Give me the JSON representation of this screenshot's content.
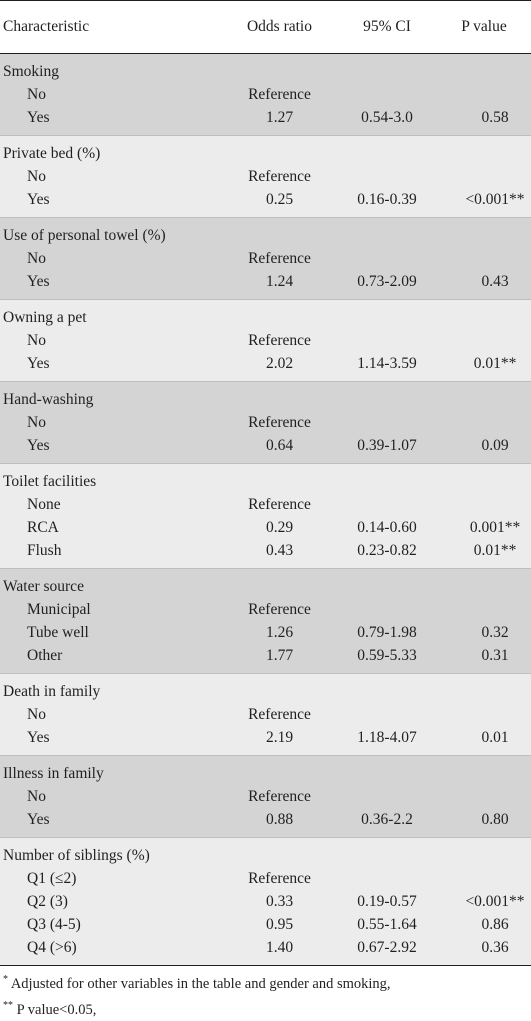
{
  "headers": {
    "characteristic": "Characteristic",
    "odds_ratio": "Odds ratio",
    "ci": "95% CI",
    "p_value": "P value"
  },
  "groups": [
    {
      "title": "Smoking",
      "rows": [
        {
          "level": "No",
          "or": "Reference",
          "ci": "",
          "p": ""
        },
        {
          "level": "Yes",
          "or": "1.27",
          "ci": "0.54-3.0",
          "p": "0.58"
        }
      ]
    },
    {
      "title": "Private bed (%)",
      "rows": [
        {
          "level": "No",
          "or": "Reference",
          "ci": "",
          "p": ""
        },
        {
          "level": "Yes",
          "or": "0.25",
          "ci": "0.16-0.39",
          "p": "<0.001**"
        }
      ]
    },
    {
      "title": "Use of personal towel (%)",
      "rows": [
        {
          "level": "No",
          "or": "Reference",
          "ci": "",
          "p": ""
        },
        {
          "level": "Yes",
          "or": "1.24",
          "ci": "0.73-2.09",
          "p": "0.43"
        }
      ]
    },
    {
      "title": "Owning a pet",
      "rows": [
        {
          "level": "No",
          "or": "Reference",
          "ci": "",
          "p": ""
        },
        {
          "level": "Yes",
          "or": "2.02",
          "ci": "1.14-3.59",
          "p": "0.01**"
        }
      ]
    },
    {
      "title": "Hand-washing",
      "rows": [
        {
          "level": "No",
          "or": "Reference",
          "ci": "",
          "p": ""
        },
        {
          "level": "Yes",
          "or": "0.64",
          "ci": "0.39-1.07",
          "p": "0.09"
        }
      ]
    },
    {
      "title": "Toilet facilities",
      "rows": [
        {
          "level": "None",
          "or": "Reference",
          "ci": "",
          "p": ""
        },
        {
          "level": "RCA",
          "or": "0.29",
          "ci": "0.14-0.60",
          "p": "0.001**"
        },
        {
          "level": "Flush",
          "or": "0.43",
          "ci": "0.23-0.82",
          "p": "0.01**"
        }
      ]
    },
    {
      "title": "Water source",
      "rows": [
        {
          "level": "Municipal",
          "or": "Reference",
          "ci": "",
          "p": ""
        },
        {
          "level": "Tube well",
          "or": "1.26",
          "ci": "0.79-1.98",
          "p": "0.32"
        },
        {
          "level": "Other",
          "or": "1.77",
          "ci": "0.59-5.33",
          "p": "0.31"
        }
      ]
    },
    {
      "title": "Death in family",
      "rows": [
        {
          "level": "No",
          "or": "Reference",
          "ci": "",
          "p": ""
        },
        {
          "level": "Yes",
          "or": "2.19",
          "ci": "1.18-4.07",
          "p": "0.01"
        }
      ]
    },
    {
      "title": "Illness in family",
      "rows": [
        {
          "level": "No",
          "or": "Reference",
          "ci": "",
          "p": ""
        },
        {
          "level": "Yes",
          "or": "0.88",
          "ci": "0.36-2.2",
          "p": "0.80"
        }
      ]
    },
    {
      "title": "Number of siblings (%)",
      "rows": [
        {
          "level": "Q1 (≤2)",
          "or": "Reference",
          "ci": "",
          "p": ""
        },
        {
          "level": "Q2 (3)",
          "or": "0.33",
          "ci": "0.19-0.57",
          "p": "<0.001**"
        },
        {
          "level": "Q3 (4-5)",
          "or": "0.95",
          "ci": "0.55-1.64",
          "p": "0.86"
        },
        {
          "level": "Q4 (>6)",
          "or": "1.40",
          "ci": "0.67-2.92",
          "p": "0.36"
        }
      ]
    }
  ],
  "footnotes": {
    "note1_mark": "*",
    "note1_text": " Adjusted for other variables in the table and gender and smoking,",
    "note2_mark": "**",
    "note2_text": " P value<0.05,"
  }
}
